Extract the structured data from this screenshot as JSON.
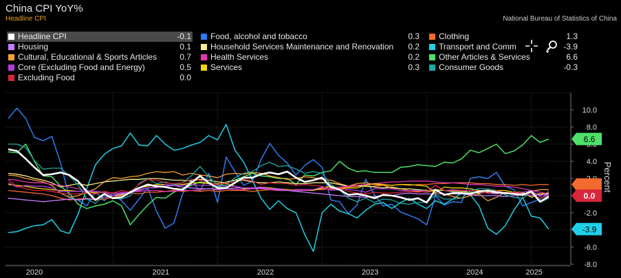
{
  "title": "China CPI YoY%",
  "subtitle": "Headline CPI",
  "source": "National Bureau of Statistics of China",
  "tools": {
    "crosshair_icon": "crosshair-icon",
    "zoom_icon": "zoom-in-icon"
  },
  "legend": [
    {
      "label": "Headline CPI",
      "value": "-0.1",
      "color": "#ffffff"
    },
    {
      "label": "Housing",
      "value": "0.1",
      "color": "#c77dff"
    },
    {
      "label": "Cultural, Educational & Sports Articles",
      "value": "0.7",
      "color": "#f7a12f"
    },
    {
      "label": "Core (Excluding Food and Energy)",
      "value": "0.5",
      "color": "#b23fd9"
    },
    {
      "label": "Excluding Food",
      "value": "0.0",
      "color": "#d8263a"
    },
    {
      "label": "Food, alcohol and tobacco",
      "value": "0.3",
      "color": "#2e7cf0"
    },
    {
      "label": "Household Services Maintenance and Renovation",
      "value": "0.2",
      "color": "#f5ee8e"
    },
    {
      "label": "Health Services",
      "value": "0.2",
      "color": "#e235b0"
    },
    {
      "label": "Services",
      "value": "0.3",
      "color": "#f2d40b"
    },
    {
      "label": "Clothing",
      "value": "1.3",
      "color": "#f26a2e"
    },
    {
      "label": "Transport and Comm",
      "value": "-3.9",
      "color": "#21d0e8"
    },
    {
      "label": "Other Articles & Services",
      "value": "6.6",
      "color": "#4ee06a"
    },
    {
      "label": "Consumer Goods",
      "value": "-0.3",
      "color": "#1fa9a9"
    }
  ],
  "chart_data": {
    "type": "line",
    "title": "China CPI YoY%",
    "ylabel": "Percent",
    "ylim": [
      -8.0,
      12.0
    ],
    "yticks": [
      "10.0",
      "8.0",
      "6.0",
      "4.0",
      "2.0",
      "0.0",
      "-2.0",
      "-4.0",
      "-6.0",
      "-8.0"
    ],
    "x_start": "2020-01",
    "x_end": "2025-03",
    "xticks": [
      "2020",
      "2021",
      "2022",
      "2023",
      "2024",
      "2025"
    ],
    "last_value_tags": [
      {
        "value": 6.6,
        "label": "6.6",
        "series": "Other Articles & Services"
      },
      {
        "value": 1.3,
        "label": "",
        "series": "Clothing"
      },
      {
        "value": 0.0,
        "label": "0.0",
        "series": "Excluding Food"
      },
      {
        "value": -3.9,
        "label": "-3.9",
        "series": "Transport and Comm"
      }
    ],
    "series": [
      {
        "name": "Food, alcohol and tobacco",
        "color": "#2e7cf0",
        "width": 1.5,
        "values": [
          9.0,
          10.2,
          9.0,
          6.8,
          6.4,
          6.9,
          3.8,
          -0.2,
          -0.5,
          -1.2,
          0.5,
          -0.6,
          0.3,
          -0.6,
          -1.7,
          -0.4,
          0.9,
          -1.8,
          -3.8,
          -3.2,
          0.2,
          1.8,
          0.5,
          2.6,
          -0.8,
          4.5,
          2.8,
          1.2,
          1.7,
          4.2,
          6.1,
          4.7,
          3.8,
          2.4,
          3.5,
          4.2,
          3.3,
          -0.5,
          -0.7,
          -2.1,
          -1.1,
          1.9,
          0.1,
          -1.2,
          -1.0,
          -1.9,
          -2.3,
          -2.7,
          -3.4,
          0.0,
          -1.1,
          -0.7,
          -0.8,
          2.0,
          2.2,
          2.0,
          2.7,
          1.1,
          0.7,
          -1.2,
          -0.8,
          -0.4,
          0.3
        ]
      },
      {
        "name": "Transport and Comm",
        "color": "#21d0e8",
        "width": 1.5,
        "values": [
          -4.3,
          -4.2,
          -3.8,
          -3.5,
          -3.4,
          -2.8,
          -4.1,
          -4.4,
          -2.2,
          0.8,
          3.6,
          4.8,
          5.5,
          5.8,
          7.3,
          5.9,
          5.8,
          7.0,
          6.0,
          5.3,
          5.5,
          5.9,
          6.2,
          7.0,
          6.5,
          8.3,
          5.3,
          3.9,
          1.8,
          -0.3,
          -1.6,
          -0.6,
          -1.5,
          -2.0,
          -4.5,
          -6.5,
          -2.0,
          -1.0,
          -1.8,
          -2.1,
          -2.6,
          -1.7,
          -1.0,
          -0.8,
          -1.5,
          -0.8,
          -0.3,
          -1.0,
          -1.5,
          -0.6,
          -1.0,
          -0.4,
          0.3,
          0.1,
          -1.2,
          -3.8,
          -4.5,
          -3.5,
          -1.7,
          -0.2,
          -2.4,
          -2.6,
          -3.9
        ]
      },
      {
        "name": "Other Articles & Services",
        "color": "#4ee06a",
        "width": 1.5,
        "values": [
          5.1,
          5.0,
          6.0,
          4.0,
          2.3,
          2.2,
          1.1,
          0.3,
          -1.0,
          -1.5,
          -1.2,
          -1.0,
          -0.6,
          -1.2,
          -3.4,
          -2.2,
          -1.1,
          -0.2,
          -0.3,
          0.4,
          0.8,
          1.2,
          1.6,
          1.4,
          1.0,
          1.6,
          1.8,
          2.2,
          2.6,
          2.3,
          2.2,
          2.0,
          2.0,
          1.3,
          2.4,
          2.3,
          2.7,
          2.9,
          4.0,
          3.2,
          2.8,
          2.9,
          2.7,
          2.7,
          2.7,
          3.3,
          3.4,
          3.6,
          3.5,
          3.4,
          3.9,
          3.8,
          4.3,
          5.3,
          5.0,
          5.5,
          6.0,
          4.9,
          5.2,
          5.9,
          7.0,
          6.2,
          6.6
        ]
      },
      {
        "name": "Cultural, Educational & Sports Articles",
        "color": "#f7a12f",
        "width": 1.3,
        "values": [
          2.4,
          2.3,
          2.0,
          1.8,
          1.6,
          1.2,
          0.3,
          -0.2,
          0.0,
          0.4,
          0.8,
          1.6,
          2.1,
          2.0,
          2.2,
          2.3,
          2.6,
          2.8,
          2.7,
          2.8,
          2.4,
          2.6,
          2.4,
          2.3,
          2.1,
          2.5,
          2.6,
          2.5,
          2.7,
          2.6,
          2.3,
          2.1,
          1.9,
          2.0,
          2.2,
          2.1,
          1.9,
          1.8,
          1.4,
          1.1,
          1.4,
          1.5,
          1.3,
          1.2,
          0.9,
          0.8,
          0.6,
          0.5,
          0.4,
          0.6,
          0.2,
          -0.1,
          -0.3,
          0.0,
          0.2,
          -0.6,
          -0.2,
          0.4,
          0.3,
          0.0,
          0.5,
          0.7,
          0.7
        ]
      },
      {
        "name": "Clothing",
        "color": "#f26a2e",
        "width": 1.3,
        "values": [
          0.6,
          0.5,
          0.4,
          0.3,
          0.2,
          0.0,
          -0.3,
          -0.5,
          -0.4,
          -0.3,
          -0.5,
          -0.4,
          -0.2,
          0.0,
          0.3,
          0.2,
          0.4,
          0.4,
          0.5,
          0.6,
          0.5,
          0.6,
          0.5,
          0.6,
          0.5,
          0.6,
          0.6,
          0.6,
          0.5,
          0.6,
          0.7,
          0.6,
          0.6,
          0.7,
          0.7,
          0.7,
          0.7,
          0.8,
          0.9,
          1.0,
          1.1,
          1.1,
          1.1,
          1.2,
          1.2,
          1.3,
          1.2,
          1.3,
          1.3,
          1.4,
          1.4,
          1.5,
          1.5,
          1.5,
          1.4,
          1.4,
          1.3,
          1.3,
          1.2,
          1.3,
          1.2,
          1.3,
          1.3
        ]
      },
      {
        "name": "Household Services Maintenance and Renovation",
        "color": "#f5ee8e",
        "width": 1.3,
        "values": [
          2.6,
          2.5,
          2.3,
          2.0,
          1.8,
          1.5,
          1.0,
          1.2,
          1.4,
          1.2,
          1.4,
          1.6,
          1.7,
          1.8,
          1.9,
          1.9,
          2.0,
          2.0,
          1.9,
          1.8,
          1.8,
          1.7,
          1.9,
          1.8,
          1.6,
          1.5,
          1.8,
          1.8,
          1.6,
          1.5,
          1.5,
          1.6,
          1.5,
          1.4,
          1.4,
          1.5,
          1.5,
          1.5,
          1.3,
          1.1,
          1.2,
          1.1,
          1.0,
          0.9,
          1.0,
          0.8,
          0.8,
          0.7,
          0.6,
          0.7,
          0.6,
          0.5,
          0.5,
          0.4,
          0.3,
          0.4,
          0.3,
          0.3,
          0.2,
          0.3,
          0.2,
          0.2,
          0.2
        ]
      },
      {
        "name": "Health Services",
        "color": "#e235b0",
        "width": 1.3,
        "values": [
          1.9,
          1.8,
          1.6,
          1.5,
          1.5,
          1.3,
          1.2,
          1.0,
          0.8,
          0.6,
          0.5,
          0.4,
          0.3,
          0.3,
          0.4,
          0.5,
          0.6,
          0.6,
          0.5,
          0.5,
          0.6,
          0.6,
          0.7,
          0.8,
          0.8,
          0.8,
          0.7,
          0.7,
          0.8,
          0.8,
          0.7,
          0.6,
          0.6,
          0.7,
          0.7,
          0.7,
          0.8,
          0.9,
          1.0,
          1.1,
          1.2,
          1.3,
          1.4,
          1.5,
          1.6,
          1.6,
          1.7,
          1.7,
          1.7,
          1.6,
          1.5,
          1.5,
          1.4,
          1.3,
          1.3,
          1.2,
          1.1,
          1.1,
          1.0,
          0.8,
          0.6,
          0.4,
          0.2
        ]
      },
      {
        "name": "Services",
        "color": "#f2d40b",
        "width": 1.3,
        "values": [
          1.3,
          1.2,
          1.1,
          0.9,
          0.8,
          0.7,
          0.6,
          0.6,
          0.5,
          0.5,
          0.3,
          0.4,
          0.0,
          0.1,
          0.5,
          0.9,
          1.1,
          1.3,
          1.3,
          1.2,
          1.3,
          1.5,
          1.5,
          1.4,
          1.4,
          1.4,
          1.1,
          0.8,
          0.9,
          1.0,
          0.9,
          0.8,
          0.7,
          0.6,
          0.6,
          0.6,
          0.9,
          1.1,
          0.8,
          0.9,
          0.9,
          1.2,
          1.4,
          1.3,
          1.2,
          1.3,
          1.3,
          1.2,
          1.1,
          0.3,
          1.0,
          0.9,
          0.9,
          0.8,
          0.6,
          0.5,
          0.6,
          0.6,
          0.4,
          0.4,
          -0.2,
          0.2,
          0.3
        ]
      },
      {
        "name": "Housing",
        "color": "#c77dff",
        "width": 1.3,
        "values": [
          -0.3,
          -0.4,
          -0.5,
          -0.6,
          -0.7,
          -0.6,
          -0.5,
          -0.4,
          -0.5,
          -0.4,
          -0.4,
          -0.2,
          0.0,
          0.2,
          0.4,
          0.6,
          0.9,
          1.0,
          1.1,
          1.2,
          1.0,
          0.9,
          0.8,
          0.8,
          0.7,
          0.8,
          0.9,
          0.9,
          0.9,
          0.9,
          0.8,
          0.7,
          0.6,
          0.5,
          0.4,
          0.3,
          0.2,
          0.1,
          0.0,
          -0.1,
          -0.1,
          -0.2,
          -0.1,
          0.0,
          0.0,
          0.2,
          0.3,
          0.2,
          0.2,
          0.2,
          0.2,
          0.2,
          0.2,
          0.1,
          0.0,
          0.0,
          0.0,
          -0.1,
          0.0,
          0.1,
          0.0,
          0.1,
          0.1
        ]
      },
      {
        "name": "Core (Excluding Food and Energy)",
        "color": "#b23fd9",
        "width": 1.3,
        "values": [
          1.5,
          1.0,
          1.2,
          1.1,
          1.1,
          0.9,
          0.5,
          0.5,
          0.5,
          0.5,
          0.5,
          0.4,
          0.0,
          0.4,
          0.3,
          0.7,
          0.9,
          0.9,
          1.3,
          1.2,
          1.2,
          1.3,
          1.2,
          1.2,
          1.2,
          1.1,
          1.1,
          0.9,
          0.9,
          1.0,
          0.8,
          0.8,
          0.6,
          0.6,
          0.6,
          0.7,
          1.0,
          0.6,
          0.7,
          0.7,
          0.6,
          0.4,
          0.8,
          0.8,
          0.8,
          0.6,
          0.6,
          0.6,
          0.4,
          1.2,
          0.6,
          0.7,
          0.6,
          0.6,
          0.4,
          0.3,
          0.2,
          0.3,
          0.3,
          0.4,
          0.6,
          -0.1,
          0.5
        ]
      },
      {
        "name": "Consumer Goods",
        "color": "#1fa9a9",
        "width": 1.3,
        "values": [
          6.0,
          6.0,
          5.6,
          4.1,
          3.1,
          3.2,
          3.2,
          2.3,
          1.3,
          -0.4,
          -0.9,
          0.1,
          -0.3,
          -0.4,
          0.0,
          1.4,
          2.0,
          1.4,
          1.6,
          1.3,
          1.5,
          2.3,
          3.4,
          2.2,
          1.2,
          1.2,
          2.1,
          2.6,
          2.8,
          3.5,
          3.9,
          3.4,
          3.5,
          3.1,
          2.6,
          2.8,
          2.6,
          1.3,
          0.7,
          -0.3,
          -0.7,
          -0.3,
          -0.8,
          -0.4,
          -0.5,
          -0.9,
          -1.0,
          -0.8,
          -0.8,
          0.1,
          -0.4,
          -0.4,
          -0.3,
          0.6,
          0.8,
          0.8,
          0.6,
          0.1,
          -0.2,
          -0.3,
          0.4,
          -0.8,
          -0.3
        ]
      },
      {
        "name": "Excluding Food",
        "color": "#d8263a",
        "width": 1.3,
        "values": [
          1.8,
          1.1,
          0.8,
          0.6,
          0.6,
          0.5,
          0.3,
          0.2,
          0.2,
          0.3,
          0.2,
          0.5,
          0.3,
          0.6,
          0.4,
          1.3,
          1.9,
          1.8,
          1.5,
          1.4,
          1.5,
          1.9,
          1.8,
          1.5,
          1.3,
          1.5,
          1.6,
          1.9,
          1.7,
          1.3,
          1.5,
          1.4,
          1.4,
          1.2,
          1.3,
          1.2,
          1.1,
          0.7,
          0.9,
          0.5,
          0.3,
          0.2,
          0.4,
          0.3,
          0.3,
          0.4,
          0.5,
          0.4,
          0.5,
          1.2,
          0.6,
          0.6,
          0.6,
          0.6,
          0.5,
          0.3,
          0.6,
          0.3,
          0.4,
          0.2,
          0.2,
          -0.3,
          0.0
        ]
      },
      {
        "name": "Headline CPI",
        "color": "#ffffff",
        "width": 2.6,
        "values": [
          5.4,
          5.2,
          4.3,
          3.3,
          2.4,
          2.5,
          2.7,
          2.4,
          1.7,
          0.5,
          -0.5,
          0.2,
          -0.3,
          -0.2,
          0.4,
          0.9,
          1.3,
          1.1,
          1.0,
          0.8,
          0.7,
          1.5,
          2.3,
          1.5,
          0.9,
          0.9,
          1.5,
          2.1,
          2.1,
          2.5,
          2.7,
          2.5,
          2.8,
          2.1,
          1.6,
          1.8,
          2.1,
          1.0,
          0.7,
          0.1,
          0.2,
          0.0,
          -0.3,
          0.1,
          0.0,
          -0.2,
          -0.5,
          -0.3,
          -0.8,
          0.7,
          0.1,
          0.3,
          0.3,
          0.2,
          0.5,
          0.6,
          0.4,
          0.3,
          0.2,
          0.1,
          0.5,
          -0.7,
          -0.1
        ]
      }
    ]
  }
}
